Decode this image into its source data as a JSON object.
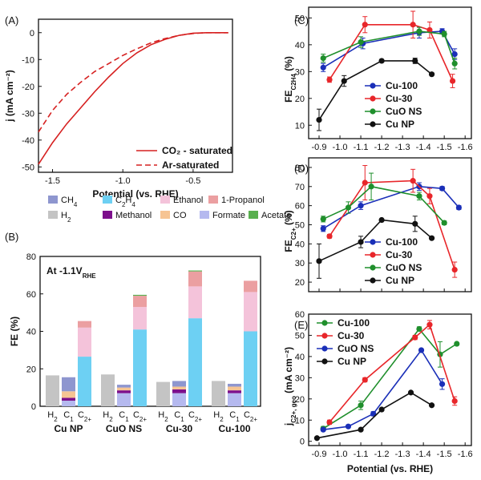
{
  "chart_data": [
    {
      "panel": "(A)",
      "type": "line",
      "xlabel": "Potential (vs. RHE)",
      "ylabel": "j (mA cm⁻²)",
      "xlim": [
        -1.6,
        -0.22
      ],
      "ylim": [
        -52,
        5
      ],
      "x_reversed": true,
      "x_ticks": [
        "-1.5",
        "-1.0",
        "-0.5"
      ],
      "x_tick_values": [
        -1.5,
        -1.0,
        -0.5
      ],
      "y_ticks": [
        "0",
        "-10",
        "-20",
        "-30",
        "-40",
        "-50"
      ],
      "y_tick_values": [
        0,
        -10,
        -20,
        -30,
        -40,
        -50
      ],
      "series": [
        {
          "name": "CO₂ - saturated",
          "color": "#d62020",
          "dash": "solid",
          "x": [
            -1.6,
            -1.5,
            -1.4,
            -1.3,
            -1.2,
            -1.1,
            -1.0,
            -0.9,
            -0.8,
            -0.7,
            -0.6,
            -0.5,
            -0.4,
            -0.3,
            -0.25
          ],
          "y": [
            -49,
            -41,
            -34,
            -28,
            -22,
            -16.5,
            -11.5,
            -7.5,
            -4.5,
            -2.5,
            -1,
            -0.2,
            0,
            0,
            0
          ]
        },
        {
          "name": "Ar-saturated",
          "color": "#d62020",
          "dash": "dashed",
          "x": [
            -1.6,
            -1.5,
            -1.4,
            -1.3,
            -1.2,
            -1.1,
            -1.0,
            -0.9,
            -0.8,
            -0.7,
            -0.6,
            -0.5,
            -0.4,
            -0.3,
            -0.25
          ],
          "y": [
            -37,
            -29,
            -23,
            -18.5,
            -14.5,
            -11.5,
            -8.5,
            -6,
            -3.8,
            -2.2,
            -1,
            -0.3,
            0,
            0,
            0
          ]
        }
      ]
    },
    {
      "panel": "(B)",
      "type": "bar",
      "stacked": true,
      "annotation": "At -1.1V",
      "annotation_sub": "RHE",
      "ylabel": "FE (%)",
      "ylim": [
        0,
        80
      ],
      "y_ticks": [
        "0",
        "20",
        "40",
        "60",
        "80"
      ],
      "y_tick_values": [
        0,
        20,
        40,
        60,
        80
      ],
      "categories": [
        "Cu NP",
        "CuO NS",
        "Cu-30",
        "Cu-100"
      ],
      "sub_categories": [
        "H",
        "C",
        "C"
      ],
      "sub_category_subscripts": [
        "2",
        "1",
        "2+"
      ],
      "legend": [
        {
          "name": "CH",
          "sub": "4",
          "color": "#8e96cf"
        },
        {
          "name": "C",
          "sub": "2",
          "tail": "H",
          "sub2": "4",
          "color": "#6dd0f3"
        },
        {
          "name": "Ethanol",
          "color": "#f4c3da"
        },
        {
          "name": "1-Propanol",
          "color": "#eb9fa1"
        },
        {
          "name": "H",
          "sub": "2",
          "color": "#c4c4c4"
        },
        {
          "name": "Methanol",
          "color": "#7d0f8c"
        },
        {
          "name": "CO",
          "color": "#f6c493"
        },
        {
          "name": "Formate",
          "color": "#b5b9ef"
        },
        {
          "name": "Acetate",
          "color": "#59b04f"
        }
      ],
      "groups": [
        {
          "H2": 16.5,
          "C1": {
            "Formate": 3,
            "Methanol": 1.5,
            "CO": 3.5,
            "CH4": 7.5
          },
          "C2plus": {
            "C2H4": 26.5,
            "Ethanol": 15.5,
            "1-Propanol": 3.5
          }
        },
        {
          "H2": 17,
          "C1": {
            "Formate": 7,
            "Methanol": 1.5,
            "CO": 1.5,
            "CH4": 1.5
          },
          "C2plus": {
            "C2H4": 41,
            "Ethanol": 12,
            "1-Propanol": 6,
            "Acetate": 0.5
          }
        },
        {
          "H2": 13,
          "C1": {
            "Formate": 7,
            "Methanol": 2,
            "CO": 1.5,
            "CH4": 3
          },
          "C2plus": {
            "C2H4": 47,
            "Ethanol": 17,
            "1-Propanol": 8,
            "Acetate": 0.5
          }
        },
        {
          "H2": 13.5,
          "C1": {
            "Formate": 7,
            "Methanol": 1.5,
            "CO": 2,
            "CH4": 1.5
          },
          "C2plus": {
            "C2H4": 40,
            "Ethanol": 21,
            "1-Propanol": 6
          }
        }
      ]
    },
    {
      "panel": "(C)",
      "type": "line",
      "ylabel": "FE",
      "ylabel_sub": "C2H4",
      "ylabel_tail": "(%)",
      "x_reversed": true,
      "xlim": [
        -0.85,
        -1.63
      ],
      "ylim": [
        5,
        54
      ],
      "x_ticks": [
        "-0.9",
        "-1.0",
        "-1.1",
        "-1.2",
        "-1.3",
        "-1.4",
        "-1.5",
        "-1.6"
      ],
      "x_tick_values": [
        -0.9,
        -1.0,
        -1.1,
        -1.2,
        -1.3,
        -1.4,
        -1.5,
        -1.6
      ],
      "y_ticks": [
        "10",
        "20",
        "30",
        "40",
        "50"
      ],
      "y_tick_values": [
        10,
        20,
        30,
        40,
        50
      ],
      "series": [
        {
          "name": "Cu-100",
          "color": "#1a2fb8",
          "x": [
            -0.92,
            -1.11,
            -1.38,
            -1.49,
            -1.55
          ],
          "y": [
            31.5,
            40.5,
            44.5,
            45,
            36.5
          ],
          "err": [
            1.5,
            2,
            2,
            1,
            2
          ]
        },
        {
          "name": "Cu-30",
          "color": "#e8262a",
          "x": [
            -0.95,
            -1.12,
            -1.35,
            -1.43,
            -1.54
          ],
          "y": [
            27,
            47.5,
            47.5,
            45.5,
            26.5
          ],
          "err": [
            1,
            3,
            5,
            3,
            2.5
          ]
        },
        {
          "name": "CuO NS",
          "color": "#1f8f2c",
          "x": [
            -0.92,
            -1.1,
            -1.38,
            -1.5,
            -1.55
          ],
          "y": [
            35,
            41,
            45,
            44,
            33
          ],
          "err": [
            1.5,
            2,
            1.5,
            1,
            2
          ]
        },
        {
          "name": "Cu NP",
          "color": "#111111",
          "x": [
            -0.9,
            -1.02,
            -1.2,
            -1.36,
            -1.44
          ],
          "y": [
            12,
            26.5,
            34,
            34,
            29
          ],
          "err": [
            4,
            2,
            0.5,
            1,
            0.5
          ]
        }
      ]
    },
    {
      "panel": "(D)",
      "type": "line",
      "ylabel": "FE",
      "ylabel_sub": "C2+",
      "ylabel_tail": "(%)",
      "x_reversed": true,
      "xlim": [
        -0.85,
        -1.63
      ],
      "ylim": [
        15,
        85
      ],
      "x_ticks": [
        "-0.9",
        "-1.0",
        "-1.1",
        "-1.2",
        "-1.3",
        "-1.4",
        "-1.5",
        "-1.6"
      ],
      "x_tick_values": [
        -0.9,
        -1.0,
        -1.1,
        -1.2,
        -1.3,
        -1.4,
        -1.5,
        -1.6
      ],
      "y_ticks": [
        "20",
        "30",
        "40",
        "50",
        "60",
        "70",
        "80"
      ],
      "y_tick_values": [
        20,
        30,
        40,
        50,
        60,
        70,
        80
      ],
      "series": [
        {
          "name": "Cu-100",
          "color": "#1a2fb8",
          "x": [
            -0.92,
            -1.1,
            -1.38,
            -1.49,
            -1.57
          ],
          "y": [
            48,
            60,
            70,
            69,
            59
          ],
          "err": [
            1.5,
            2,
            2,
            1,
            1
          ]
        },
        {
          "name": "Cu-30",
          "color": "#e8262a",
          "x": [
            -0.95,
            -1.12,
            -1.35,
            -1.43,
            -1.55
          ],
          "y": [
            44,
            72,
            73,
            65,
            26.5
          ],
          "err": [
            1,
            9,
            6,
            4,
            4
          ]
        },
        {
          "name": "CuO NS",
          "color": "#1f8f2c",
          "x": [
            -0.92,
            -1.04,
            -1.15,
            -1.38,
            -1.5
          ],
          "y": [
            53,
            59,
            70,
            65,
            51
          ],
          "err": [
            1.5,
            3,
            7,
            2,
            1
          ]
        },
        {
          "name": "Cu NP",
          "color": "#111111",
          "x": [
            -0.9,
            -1.1,
            -1.2,
            -1.36,
            -1.44
          ],
          "y": [
            31,
            41,
            52.5,
            50.5,
            43
          ],
          "err": [
            9,
            3,
            0.5,
            4,
            0.5
          ]
        }
      ]
    },
    {
      "panel": "(E)",
      "type": "line",
      "xlabel": "Potential (vs. RHE)",
      "ylabel": "j",
      "ylabel_sub": "C2+, geo",
      "ylabel_tail": "(mA cm⁻²)",
      "x_reversed": true,
      "xlim": [
        -0.85,
        -1.63
      ],
      "ylim": [
        -2,
        60
      ],
      "x_ticks": [
        "-0.9",
        "-1.0",
        "-1.1",
        "-1.2",
        "-1.3",
        "-1.4",
        "-1.5",
        "-1.6"
      ],
      "x_tick_values": [
        -0.9,
        -1.0,
        -1.1,
        -1.2,
        -1.3,
        -1.4,
        -1.5,
        -1.6
      ],
      "y_ticks": [
        "0",
        "10",
        "20",
        "30",
        "40",
        "50",
        "60"
      ],
      "y_tick_values": [
        0,
        10,
        20,
        30,
        40,
        50,
        60
      ],
      "series": [
        {
          "name": "Cu-100",
          "color": "#1f8f2c",
          "x": [
            -0.92,
            -1.1,
            -1.38,
            -1.48,
            -1.56
          ],
          "y": [
            6,
            17,
            53,
            41,
            46
          ],
          "err": [
            1,
            2,
            1,
            6,
            0.5
          ]
        },
        {
          "name": "Cu-30",
          "color": "#e8262a",
          "x": [
            -0.95,
            -1.12,
            -1.36,
            -1.43,
            -1.55
          ],
          "y": [
            9,
            29,
            49,
            55,
            19
          ],
          "err": [
            1,
            1,
            1,
            2,
            2
          ]
        },
        {
          "name": "CuO NS",
          "color": "#1a2fb8",
          "x": [
            -0.92,
            -1.04,
            -1.16,
            -1.39,
            -1.49
          ],
          "y": [
            5.5,
            7,
            13,
            43,
            27
          ],
          "err": [
            0.5,
            0.5,
            1,
            0.5,
            2.5
          ]
        },
        {
          "name": "Cu NP",
          "color": "#111111",
          "x": [
            -0.89,
            -1.1,
            -1.2,
            -1.34,
            -1.44
          ],
          "y": [
            1.5,
            5.5,
            15,
            23,
            17
          ],
          "err": [
            0.5,
            0.5,
            0.5,
            0.5,
            0.5
          ]
        }
      ]
    }
  ]
}
